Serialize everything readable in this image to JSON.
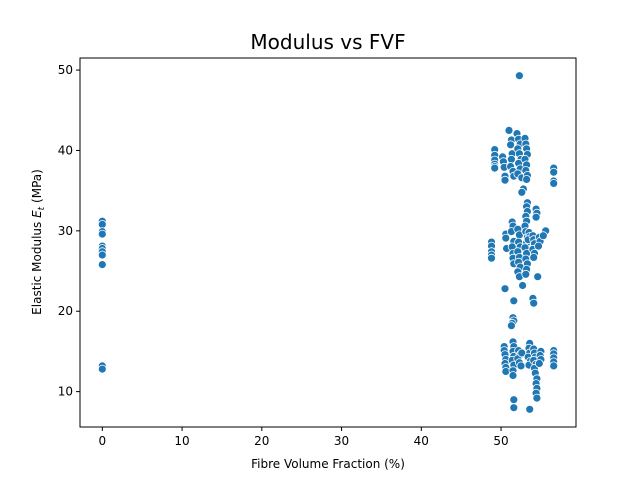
{
  "chart_data": {
    "type": "scatter",
    "title": "Modulus vs FVF",
    "xlabel": "Fibre Volume Fraction (%)",
    "ylabel": "Elastic Modulus Et (MPa)",
    "ylabel_main": "Elastic Modulus ",
    "ylabel_symbol": "E",
    "ylabel_sub": "t",
    "ylabel_unit": " (MPa)",
    "xlim": [
      -2.8,
      59.4
    ],
    "ylim": [
      5.6,
      51.5
    ],
    "xticks": [
      0,
      10,
      20,
      30,
      40,
      50
    ],
    "yticks": [
      10,
      20,
      30,
      40,
      50
    ],
    "grid": false,
    "marker_color": "#1f77b4",
    "points": [
      [
        0,
        31.2
      ],
      [
        0,
        30.8
      ],
      [
        0,
        29.9
      ],
      [
        0,
        29.6
      ],
      [
        0,
        28.1
      ],
      [
        0,
        27.8
      ],
      [
        0,
        27.4
      ],
      [
        0,
        27.0
      ],
      [
        0,
        25.8
      ],
      [
        0,
        13.2
      ],
      [
        0,
        12.8
      ],
      [
        48.8,
        28.6
      ],
      [
        48.8,
        28.1
      ],
      [
        48.8,
        27.4
      ],
      [
        48.8,
        27.0
      ],
      [
        48.8,
        26.6
      ],
      [
        49.2,
        40.1
      ],
      [
        49.2,
        39.4
      ],
      [
        49.2,
        38.8
      ],
      [
        49.2,
        38.3
      ],
      [
        49.2,
        38.0
      ],
      [
        49.2,
        37.8
      ],
      [
        50.2,
        39.2
      ],
      [
        50.3,
        38.6
      ],
      [
        50.4,
        37.9
      ],
      [
        50.5,
        36.8
      ],
      [
        50.5,
        36.3
      ],
      [
        50.6,
        29.6
      ],
      [
        50.6,
        29.1
      ],
      [
        50.7,
        27.8
      ],
      [
        50.5,
        22.8
      ],
      [
        50.4,
        15.6
      ],
      [
        50.4,
        15.1
      ],
      [
        50.5,
        14.6
      ],
      [
        50.6,
        14.0
      ],
      [
        50.5,
        13.5
      ],
      [
        50.6,
        13.0
      ],
      [
        50.6,
        12.5
      ],
      [
        51.0,
        42.5
      ],
      [
        51.3,
        41.3
      ],
      [
        51.2,
        40.7
      ],
      [
        51.4,
        39.6
      ],
      [
        51.3,
        38.9
      ],
      [
        51.2,
        38.0
      ],
      [
        51.5,
        37.4
      ],
      [
        51.6,
        36.8
      ],
      [
        51.4,
        31.1
      ],
      [
        51.5,
        30.6
      ],
      [
        51.3,
        29.9
      ],
      [
        51.6,
        28.7
      ],
      [
        51.4,
        28.0
      ],
      [
        51.5,
        27.2
      ],
      [
        51.5,
        26.6
      ],
      [
        51.6,
        25.9
      ],
      [
        51.6,
        21.3
      ],
      [
        51.5,
        19.2
      ],
      [
        51.6,
        18.8
      ],
      [
        51.4,
        18.5
      ],
      [
        51.3,
        18.2
      ],
      [
        51.5,
        16.2
      ],
      [
        51.6,
        15.6
      ],
      [
        51.5,
        15.0
      ],
      [
        51.6,
        14.4
      ],
      [
        51.4,
        13.9
      ],
      [
        51.6,
        13.3
      ],
      [
        51.5,
        12.6
      ],
      [
        51.5,
        12.0
      ],
      [
        51.6,
        9.0
      ],
      [
        51.6,
        8.0
      ],
      [
        52.0,
        42.1
      ],
      [
        52.2,
        41.4
      ],
      [
        52.4,
        40.8
      ],
      [
        52.1,
        40.2
      ],
      [
        52.3,
        39.6
      ],
      [
        52.5,
        38.9
      ],
      [
        52.2,
        38.4
      ],
      [
        52.4,
        37.7
      ],
      [
        52.1,
        37.1
      ],
      [
        52.6,
        36.6
      ],
      [
        52.8,
        35.2
      ],
      [
        52.6,
        34.8
      ],
      [
        52.3,
        49.3
      ],
      [
        52.1,
        30.2
      ],
      [
        52.3,
        29.5
      ],
      [
        52.2,
        28.6
      ],
      [
        52.4,
        28.0
      ],
      [
        52.1,
        27.4
      ],
      [
        52.3,
        26.7
      ],
      [
        52.2,
        26.1
      ],
      [
        52.4,
        25.5
      ],
      [
        52.1,
        24.9
      ],
      [
        52.3,
        24.3
      ],
      [
        52.7,
        23.2
      ],
      [
        52.2,
        15.1
      ],
      [
        52.4,
        14.6
      ],
      [
        52.1,
        14.1
      ],
      [
        52.3,
        13.6
      ],
      [
        52.5,
        13.2
      ],
      [
        52.6,
        14.8
      ],
      [
        53.0,
        41.5
      ],
      [
        53.1,
        40.8
      ],
      [
        53.2,
        40.2
      ],
      [
        53.3,
        39.5
      ],
      [
        53.0,
        38.9
      ],
      [
        53.2,
        38.2
      ],
      [
        53.1,
        37.5
      ],
      [
        53.3,
        36.9
      ],
      [
        53.2,
        36.4
      ],
      [
        53.3,
        33.5
      ],
      [
        53.2,
        33.0
      ],
      [
        53.3,
        32.4
      ],
      [
        53.1,
        31.8
      ],
      [
        53.2,
        31.2
      ],
      [
        53.0,
        30.6
      ],
      [
        53.1,
        29.9
      ],
      [
        53.3,
        29.2
      ],
      [
        53.2,
        28.5
      ],
      [
        53.0,
        27.9
      ],
      [
        53.2,
        27.2
      ],
      [
        53.1,
        26.5
      ],
      [
        53.3,
        25.9
      ],
      [
        53.2,
        25.2
      ],
      [
        53.1,
        24.6
      ],
      [
        53.5,
        29.8
      ],
      [
        53.6,
        29.3
      ],
      [
        53.4,
        28.9
      ],
      [
        53.6,
        16.0
      ],
      [
        53.5,
        15.4
      ],
      [
        53.6,
        14.8
      ],
      [
        53.4,
        14.3
      ],
      [
        53.7,
        13.8
      ],
      [
        53.5,
        13.3
      ],
      [
        53.6,
        7.8
      ],
      [
        54.0,
        29.4
      ],
      [
        54.1,
        28.9
      ],
      [
        54.2,
        28.4
      ],
      [
        54.0,
        27.7
      ],
      [
        54.2,
        27.2
      ],
      [
        54.1,
        26.7
      ],
      [
        54.0,
        21.6
      ],
      [
        54.1,
        21.0
      ],
      [
        54.1,
        15.3
      ],
      [
        54.2,
        14.8
      ],
      [
        54.3,
        14.3
      ],
      [
        54.1,
        13.9
      ],
      [
        54.4,
        13.4
      ],
      [
        54.2,
        12.9
      ],
      [
        54.3,
        12.3
      ],
      [
        54.5,
        11.6
      ],
      [
        54.4,
        11.0
      ],
      [
        54.5,
        10.4
      ],
      [
        54.4,
        9.8
      ],
      [
        54.5,
        9.2
      ],
      [
        54.4,
        32.7
      ],
      [
        54.5,
        32.2
      ],
      [
        54.4,
        31.7
      ],
      [
        54.8,
        29.2
      ],
      [
        54.9,
        28.7
      ],
      [
        54.7,
        28.1
      ],
      [
        54.6,
        24.3
      ],
      [
        55.0,
        15.0
      ],
      [
        54.9,
        14.5
      ],
      [
        55.0,
        14.0
      ],
      [
        54.8,
        13.5
      ],
      [
        55.6,
        30.0
      ],
      [
        55.3,
        29.4
      ],
      [
        56.6,
        37.8
      ],
      [
        56.6,
        37.3
      ],
      [
        56.6,
        36.2
      ],
      [
        56.6,
        35.9
      ],
      [
        56.6,
        15.1
      ],
      [
        56.6,
        14.7
      ],
      [
        56.6,
        14.2
      ],
      [
        56.6,
        13.7
      ],
      [
        56.6,
        13.2
      ]
    ]
  }
}
